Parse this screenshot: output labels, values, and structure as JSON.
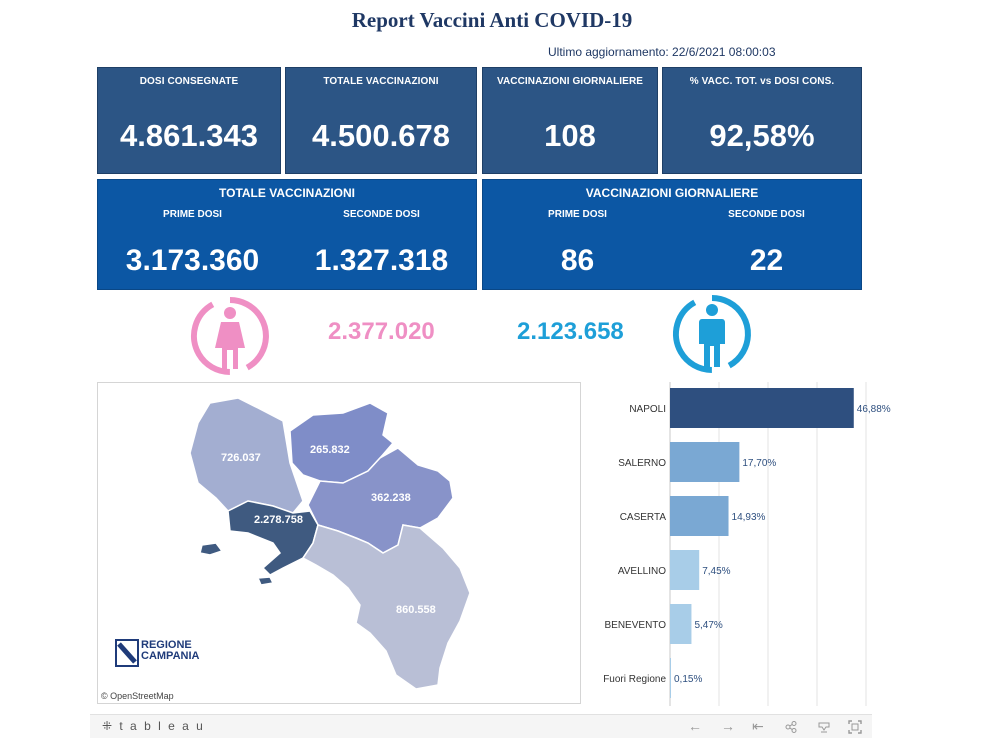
{
  "header": {
    "title": "Report Vaccini Anti COVID-19",
    "updated": "Ultimo aggiornamento: 22/6/2021 08:00:03"
  },
  "kpis": [
    {
      "label": "DOSI  CONSEGNATE",
      "value": "4.861.343"
    },
    {
      "label": "TOTALE VACCINAZIONI",
      "value": "4.500.678"
    },
    {
      "label": "VACCINAZIONI GIORNALIERE",
      "value": "108"
    },
    {
      "label": "% VACC. TOT. vs DOSI CONS.",
      "value": "92,58%"
    }
  ],
  "panels": [
    {
      "title": "TOTALE VACCINAZIONI",
      "first_label": "PRIME DOSI",
      "first_value": "3.173.360",
      "second_label": "SECONDE DOSI",
      "second_value": "1.327.318"
    },
    {
      "title": "VACCINAZIONI GIORNALIERE",
      "first_label": "PRIME DOSI",
      "first_value": "86",
      "second_label": "SECONDE DOSI",
      "second_value": "22"
    }
  ],
  "gender": {
    "female_value": "2.377.020",
    "male_value": "2.123.658",
    "female_color": "#ef8fc4",
    "male_color": "#1e9fd8",
    "female_icon": "female-person-icon",
    "male_icon": "male-person-icon"
  },
  "map": {
    "regions": [
      {
        "name": "caserta",
        "value": "726.037",
        "color": "#a3aed1"
      },
      {
        "name": "benevento",
        "value": "265.832",
        "color": "#7f8dc8"
      },
      {
        "name": "avellino",
        "value": "362.238",
        "color": "#8893c9"
      },
      {
        "name": "napoli",
        "value": "2.278.758",
        "color": "#3f5a80"
      },
      {
        "name": "salerno",
        "value": "860.558",
        "color": "#b9bfd6"
      }
    ],
    "attribution": "© OpenStreetMap",
    "logo_line1": "REGIONE",
    "logo_line2": "CAMPANIA"
  },
  "chart_data": {
    "type": "bar",
    "orientation": "horizontal",
    "categories": [
      "NAPOLI",
      "SALERNO",
      "CASERTA",
      "AVELLINO",
      "BENEVENTO",
      "Fuori Regione"
    ],
    "values": [
      46.88,
      17.7,
      14.93,
      7.45,
      5.47,
      0.15
    ],
    "value_labels": [
      "46,88%",
      "17,70%",
      "14,93%",
      "7,45%",
      "5,47%",
      "0,15%"
    ],
    "colors": [
      "#2e4f7f",
      "#7aa8d3",
      "#7aa8d3",
      "#a8cde8",
      "#a8cde8",
      "#a8cde8"
    ],
    "xlim": [
      0,
      50
    ],
    "grid": true
  },
  "footer": {
    "brand": "⁜ t a b l e a u",
    "icons": [
      "undo-icon",
      "redo-icon",
      "revert-icon",
      "share-icon",
      "download-icon",
      "fullscreen-icon"
    ]
  }
}
